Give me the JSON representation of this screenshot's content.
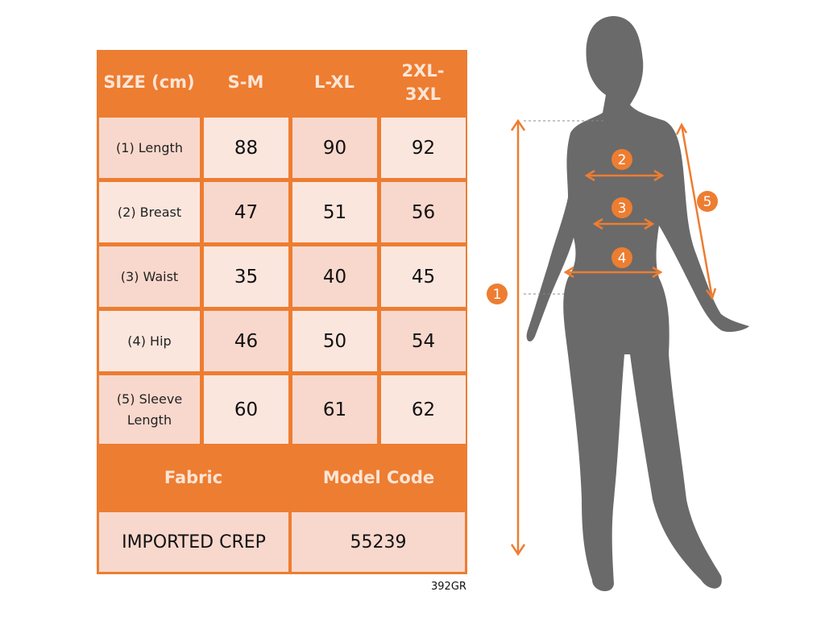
{
  "header": {
    "size_label": "SIZE (cm)",
    "sizes": [
      "S-M",
      "L-XL",
      "2XL-3XL"
    ]
  },
  "rows": [
    {
      "label": "(1) Length",
      "values": [
        "88",
        "90",
        "92"
      ]
    },
    {
      "label": "(2) Breast",
      "values": [
        "47",
        "51",
        "56"
      ]
    },
    {
      "label": "(3) Waist",
      "values": [
        "35",
        "40",
        "45"
      ]
    },
    {
      "label": "(4) Hip",
      "values": [
        "46",
        "50",
        "54"
      ]
    },
    {
      "label": "(5) Sleeve Length",
      "values": [
        "60",
        "61",
        "62"
      ]
    }
  ],
  "footer": {
    "fabric_label": "Fabric",
    "model_code_label": "Model Code",
    "fabric": "IMPORTED CREP",
    "model_code": "55239"
  },
  "product_code": "392GR",
  "markers": [
    "1",
    "2",
    "3",
    "4",
    "5"
  ],
  "colors": {
    "accent": "#ed7d31",
    "cell_dark": "#f8d8cd",
    "cell_light": "#fbe6de",
    "silhouette": "#6a6a6a"
  }
}
